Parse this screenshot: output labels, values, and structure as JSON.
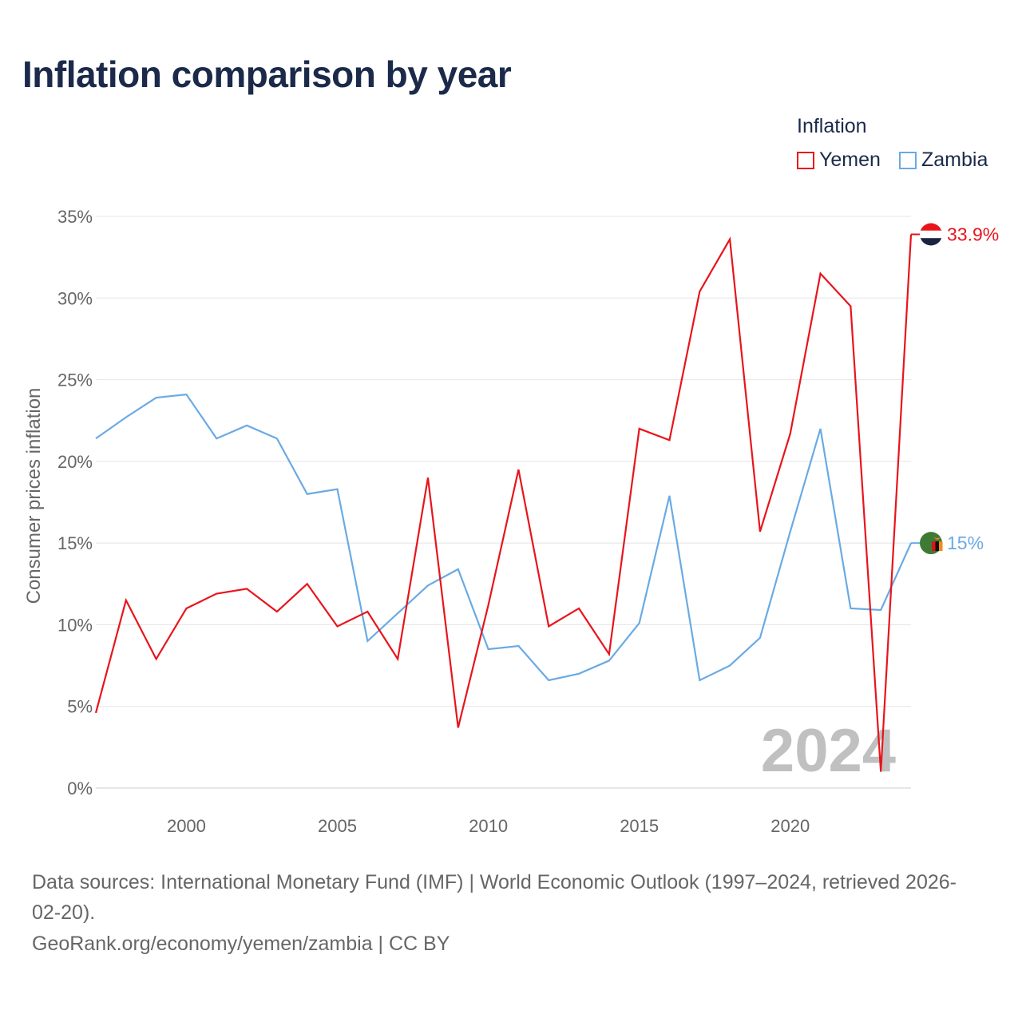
{
  "chart_data": {
    "type": "line",
    "title": "Inflation comparison by year",
    "xlabel": "",
    "ylabel": "Consumer prices inflation",
    "x": [
      1997,
      1998,
      1999,
      2000,
      2001,
      2002,
      2003,
      2004,
      2005,
      2006,
      2007,
      2008,
      2009,
      2010,
      2011,
      2012,
      2013,
      2014,
      2015,
      2016,
      2017,
      2018,
      2019,
      2020,
      2021,
      2022,
      2023,
      2024
    ],
    "xlim": [
      1997,
      2024
    ],
    "ylim": [
      0,
      35
    ],
    "xticks": [
      2000,
      2005,
      2010,
      2015,
      2020
    ],
    "yticks": [
      0,
      5,
      10,
      15,
      20,
      25,
      30,
      35
    ],
    "ytick_labels": [
      "0%",
      "5%",
      "10%",
      "15%",
      "20%",
      "25%",
      "30%",
      "35%"
    ],
    "grid": true,
    "legend_title": "Inflation",
    "legend_position": "top-right",
    "watermark": "2024",
    "series": [
      {
        "name": "Yemen",
        "color": "#e8141c",
        "end_label": "33.9%",
        "values": [
          4.6,
          11.5,
          7.9,
          11.0,
          11.9,
          12.2,
          10.8,
          12.5,
          9.9,
          10.8,
          7.9,
          19.0,
          3.7,
          11.2,
          19.5,
          9.9,
          11.0,
          8.2,
          22.0,
          21.3,
          30.4,
          33.6,
          15.7,
          21.7,
          31.5,
          29.5,
          1.0,
          33.9
        ]
      },
      {
        "name": "Zambia",
        "color": "#6aaae4",
        "end_label": "15%",
        "values": [
          21.4,
          22.7,
          23.9,
          24.1,
          21.4,
          22.2,
          21.4,
          18.0,
          18.3,
          9.0,
          10.7,
          12.4,
          13.4,
          8.5,
          8.7,
          6.6,
          7.0,
          7.8,
          10.1,
          17.9,
          6.6,
          7.5,
          9.2,
          15.7,
          22.0,
          11.0,
          10.9,
          15.0
        ]
      }
    ]
  },
  "footer": {
    "line1": "Data sources: International Monetary Fund (IMF) | World Economic Outlook (1997–2024, retrieved 2026-",
    "line2": "02-20).",
    "line3": "GeoRank.org/economy/yemen/zambia | CC BY"
  }
}
